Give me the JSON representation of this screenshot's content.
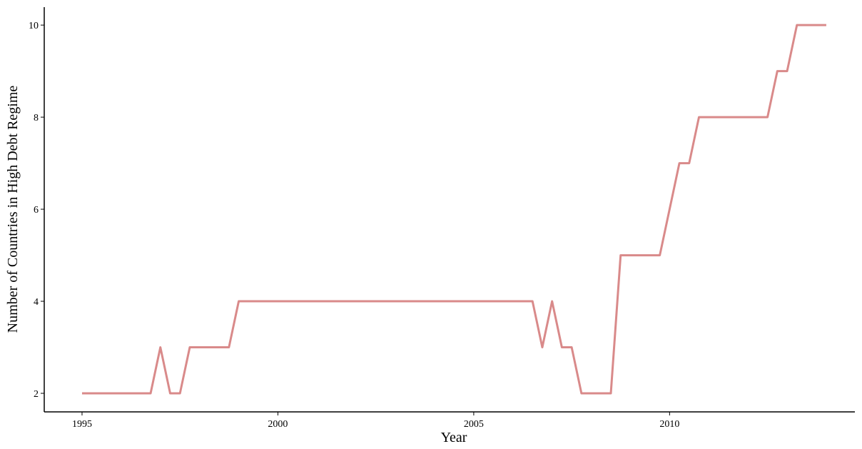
{
  "chart_data": {
    "type": "line",
    "xlabel": "Year",
    "ylabel": "Number of Countries in High Debt Regime",
    "x": [
      1995,
      1996.75,
      1997,
      1997.25,
      1997.5,
      1997.75,
      1998.75,
      1999,
      2006.5,
      2006.75,
      2007,
      2007.25,
      2007.5,
      2007.75,
      2008.5,
      2008.75,
      2009.75,
      2010.25,
      2010.5,
      2010.75,
      2012.5,
      2012.75,
      2013,
      2013.25,
      2014
    ],
    "series": [
      {
        "color": "#d98a8a",
        "values": [
          2,
          2,
          3,
          2,
          2,
          3,
          3,
          4,
          4,
          3,
          4,
          3,
          3,
          2,
          2,
          5,
          5,
          7,
          7,
          8,
          8,
          9,
          9,
          10,
          10
        ]
      }
    ],
    "xlim": [
      1994.035,
      2014.73
    ],
    "ylim": [
      1.597,
      10.39
    ],
    "xticks": [
      1995,
      2000,
      2005,
      2010
    ],
    "yticks": [
      2,
      4,
      6,
      8,
      10
    ]
  }
}
